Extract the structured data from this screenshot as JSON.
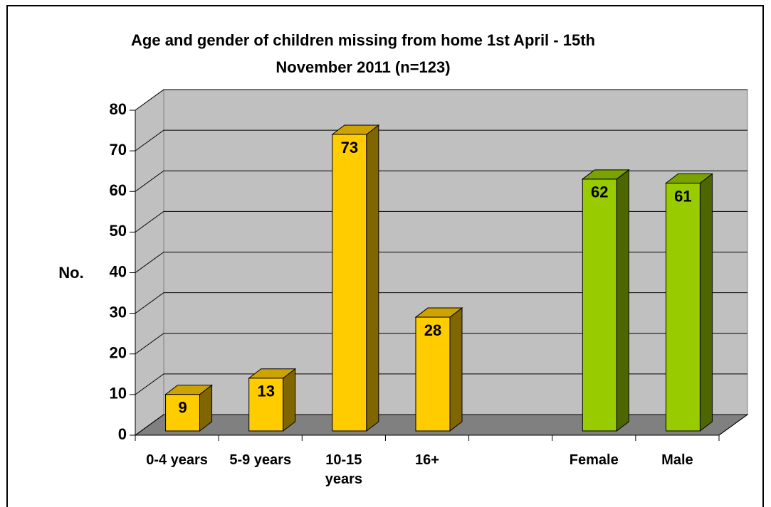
{
  "chart_data": {
    "type": "bar3d",
    "title": "Age and gender of children missing from home 1st April - 15th November 2011 (n=123)",
    "y_label": "No.",
    "categories": [
      "0-4 years",
      "5-9 years",
      "10-15 years",
      "16+",
      null,
      "Female",
      "Male"
    ],
    "values": [
      9,
      13,
      73,
      28,
      null,
      62,
      61
    ],
    "colors": [
      "#ffcc00",
      "#ffcc00",
      "#ffcc00",
      "#ffcc00",
      null,
      "#99cc00",
      "#99cc00"
    ],
    "ylim": [
      0,
      80
    ],
    "yticks": [
      0,
      10,
      20,
      30,
      40,
      50,
      60,
      70,
      80
    ],
    "grid": true
  }
}
